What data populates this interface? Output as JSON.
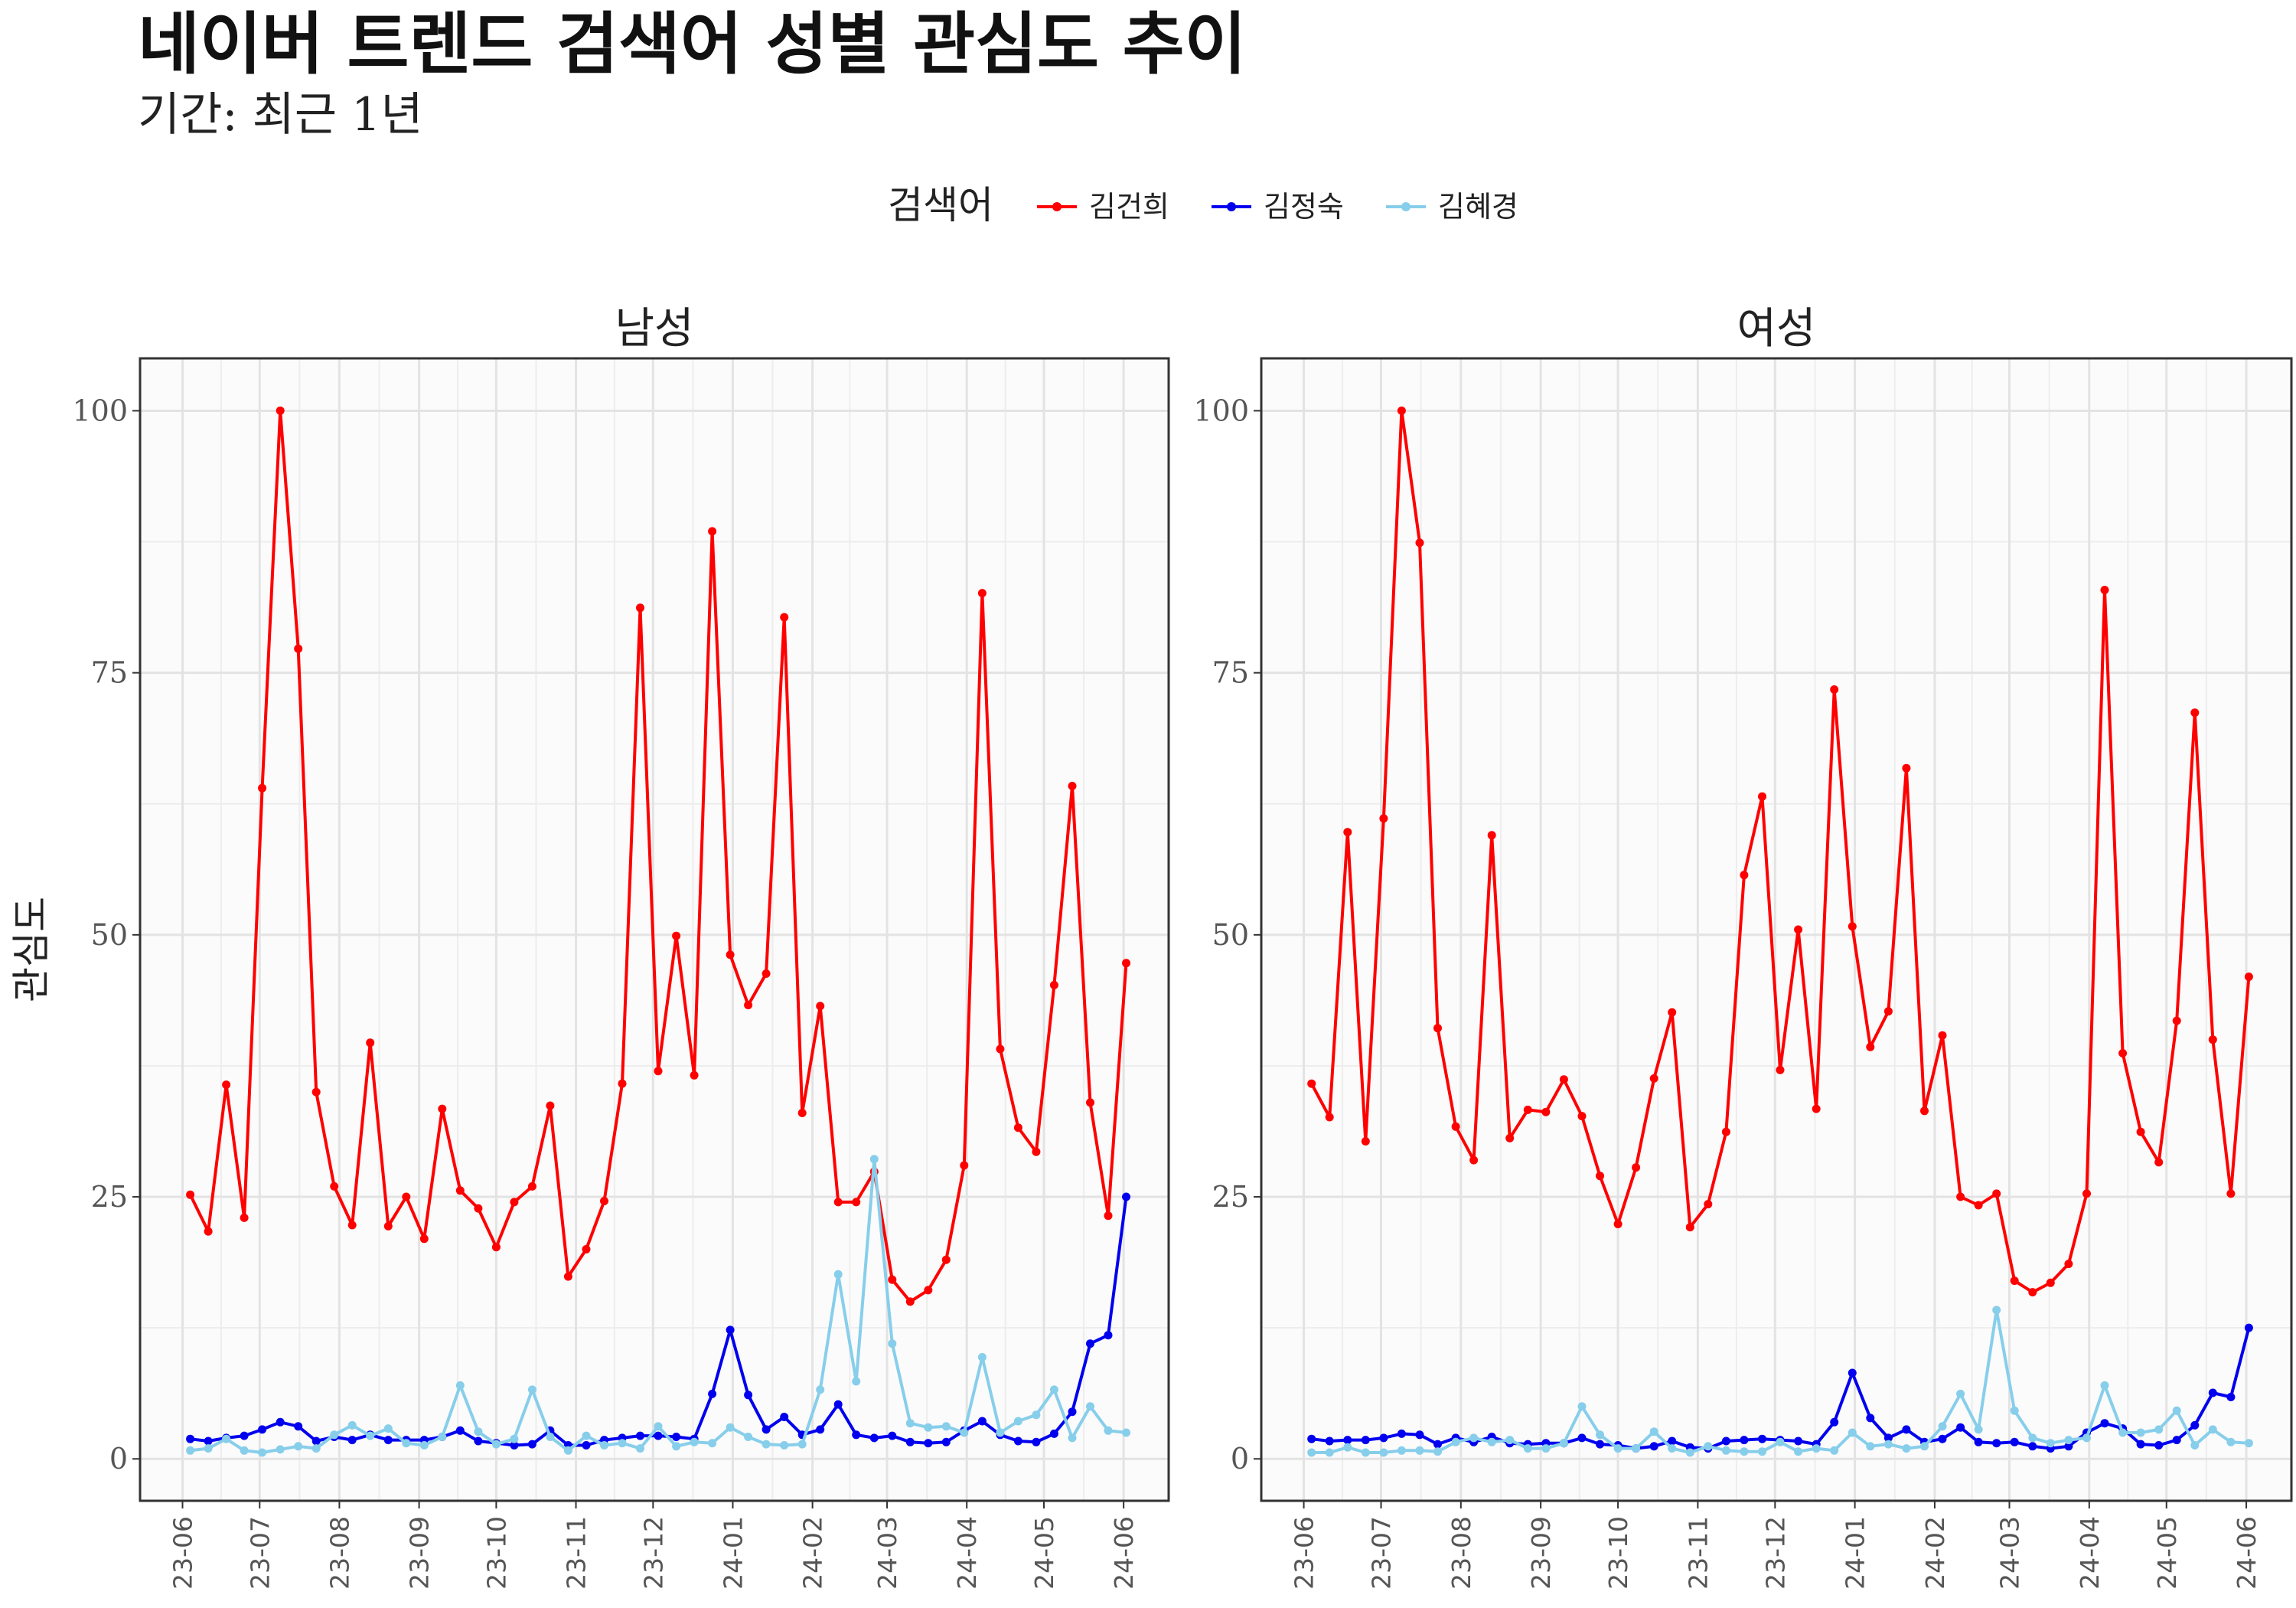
{
  "title": "네이버 트렌드 검색어 성별 관심도 추이",
  "subtitle": "기간: 최근 1년",
  "chart_data": {
    "type": "line",
    "facets": [
      "남성",
      "여성"
    ],
    "legend_title": "검색어",
    "legend_position": "top",
    "ylabel": "관심도",
    "xlabel": "",
    "ylim": [
      -4,
      105
    ],
    "yticks": [
      0,
      25,
      50,
      75,
      100
    ],
    "x_start": "2023-06-04",
    "x_step_days": 7,
    "xticks": [
      "23-06",
      "23-07",
      "23-08",
      "23-09",
      "23-10",
      "23-11",
      "23-12",
      "24-01",
      "24-02",
      "24-03",
      "24-04",
      "24-05",
      "24-06"
    ],
    "grid": true,
    "series_colors": {
      "김건희": "#ff0000",
      "김정숙": "#0000ee",
      "김혜경": "#87ceeb"
    },
    "panels": [
      {
        "name": "남성",
        "series": [
          {
            "name": "김건희",
            "values": [
              25.2,
              21.7,
              35.7,
              23,
              64,
              100,
              77.3,
              35,
              26,
              22.3,
              39.7,
              22.2,
              25,
              21,
              33.4,
              25.6,
              23.9,
              20.2,
              24.5,
              26,
              33.7,
              17.4,
              20,
              24.6,
              35.8,
              81.2,
              37,
              49.9,
              36.6,
              88.5,
              48.1,
              43.3,
              46.3,
              80.3,
              33,
              43.2,
              24.5,
              24.5,
              27.4,
              17.1,
              15,
              16.1,
              19,
              28,
              82.6,
              39.1,
              31.6,
              29.3,
              45.2,
              64.2,
              34,
              23.2,
              47.3
            ]
          },
          {
            "name": "김정숙",
            "values": [
              1.9,
              1.7,
              2,
              2.2,
              2.8,
              3.5,
              3.1,
              1.7,
              2.1,
              1.8,
              2.3,
              1.8,
              1.8,
              1.8,
              2.1,
              2.7,
              1.7,
              1.5,
              1.3,
              1.4,
              2.7,
              1.3,
              1.3,
              1.8,
              2,
              2.2,
              2.2,
              2.1,
              1.9,
              6.2,
              12.3,
              6.1,
              2.8,
              4,
              2.3,
              2.8,
              5.2,
              2.3,
              2,
              2.2,
              1.6,
              1.5,
              1.6,
              2.7,
              3.6,
              2.3,
              1.7,
              1.6,
              2.4,
              4.5,
              11,
              11.8,
              25
            ]
          },
          {
            "name": "김혜경",
            "values": [
              0.8,
              1,
              1.9,
              0.8,
              0.6,
              0.9,
              1.2,
              1,
              2.3,
              3.2,
              2.2,
              2.9,
              1.5,
              1.3,
              2.1,
              7,
              2.6,
              1.4,
              1.9,
              6.6,
              2.1,
              0.8,
              2.2,
              1.3,
              1.5,
              1,
              3.1,
              1.2,
              1.6,
              1.5,
              3,
              2.1,
              1.4,
              1.3,
              1.4,
              6.6,
              17.6,
              7.4,
              28.6,
              11,
              3.4,
              3,
              3.1,
              2.5,
              9.7,
              2.5,
              3.6,
              4.2,
              6.6,
              2,
              5,
              2.7,
              2.5
            ]
          }
        ]
      },
      {
        "name": "여성",
        "series": [
          {
            "name": "김건희",
            "values": [
              35.8,
              32.6,
              59.8,
              30.3,
              61.1,
              100,
              87.4,
              41.1,
              31.7,
              28.5,
              59.5,
              30.6,
              33.3,
              33.1,
              36.2,
              32.7,
              27,
              22.4,
              27.8,
              36.3,
              42.6,
              22.1,
              24.3,
              31.2,
              55.7,
              63.2,
              37.1,
              50.5,
              33.4,
              73.4,
              50.8,
              39.3,
              42.7,
              65.9,
              33.2,
              40.4,
              25,
              24.2,
              25.3,
              17,
              15.9,
              16.8,
              18.6,
              25.3,
              82.9,
              38.7,
              31.2,
              28.3,
              41.8,
              71.2,
              40,
              25.3,
              46
            ]
          },
          {
            "name": "김정숙",
            "values": [
              1.9,
              1.7,
              1.8,
              1.8,
              2,
              2.4,
              2.3,
              1.4,
              2,
              1.6,
              2.1,
              1.5,
              1.4,
              1.5,
              1.5,
              2,
              1.4,
              1.3,
              1,
              1.2,
              1.7,
              1.1,
              1,
              1.7,
              1.8,
              1.9,
              1.8,
              1.7,
              1.4,
              3.5,
              8.2,
              3.9,
              2,
              2.8,
              1.6,
              1.9,
              3,
              1.6,
              1.5,
              1.6,
              1.2,
              1,
              1.2,
              2.5,
              3.4,
              2.9,
              1.4,
              1.3,
              1.8,
              3.2,
              6.3,
              5.9,
              12.5
            ]
          },
          {
            "name": "김혜경",
            "values": [
              0.6,
              0.6,
              1.1,
              0.6,
              0.6,
              0.8,
              0.8,
              0.7,
              1.6,
              2,
              1.6,
              1.8,
              1,
              1,
              1.5,
              5,
              2.3,
              1,
              1,
              2.6,
              1,
              0.6,
              1.2,
              0.8,
              0.7,
              0.7,
              1.6,
              0.7,
              1,
              0.8,
              2.5,
              1.2,
              1.4,
              1,
              1.2,
              3.1,
              6.2,
              2.8,
              14.2,
              4.6,
              2,
              1.5,
              1.8,
              2,
              7,
              2.5,
              2.5,
              2.8,
              4.6,
              1.3,
              2.8,
              1.6,
              1.5
            ]
          }
        ]
      }
    ]
  }
}
